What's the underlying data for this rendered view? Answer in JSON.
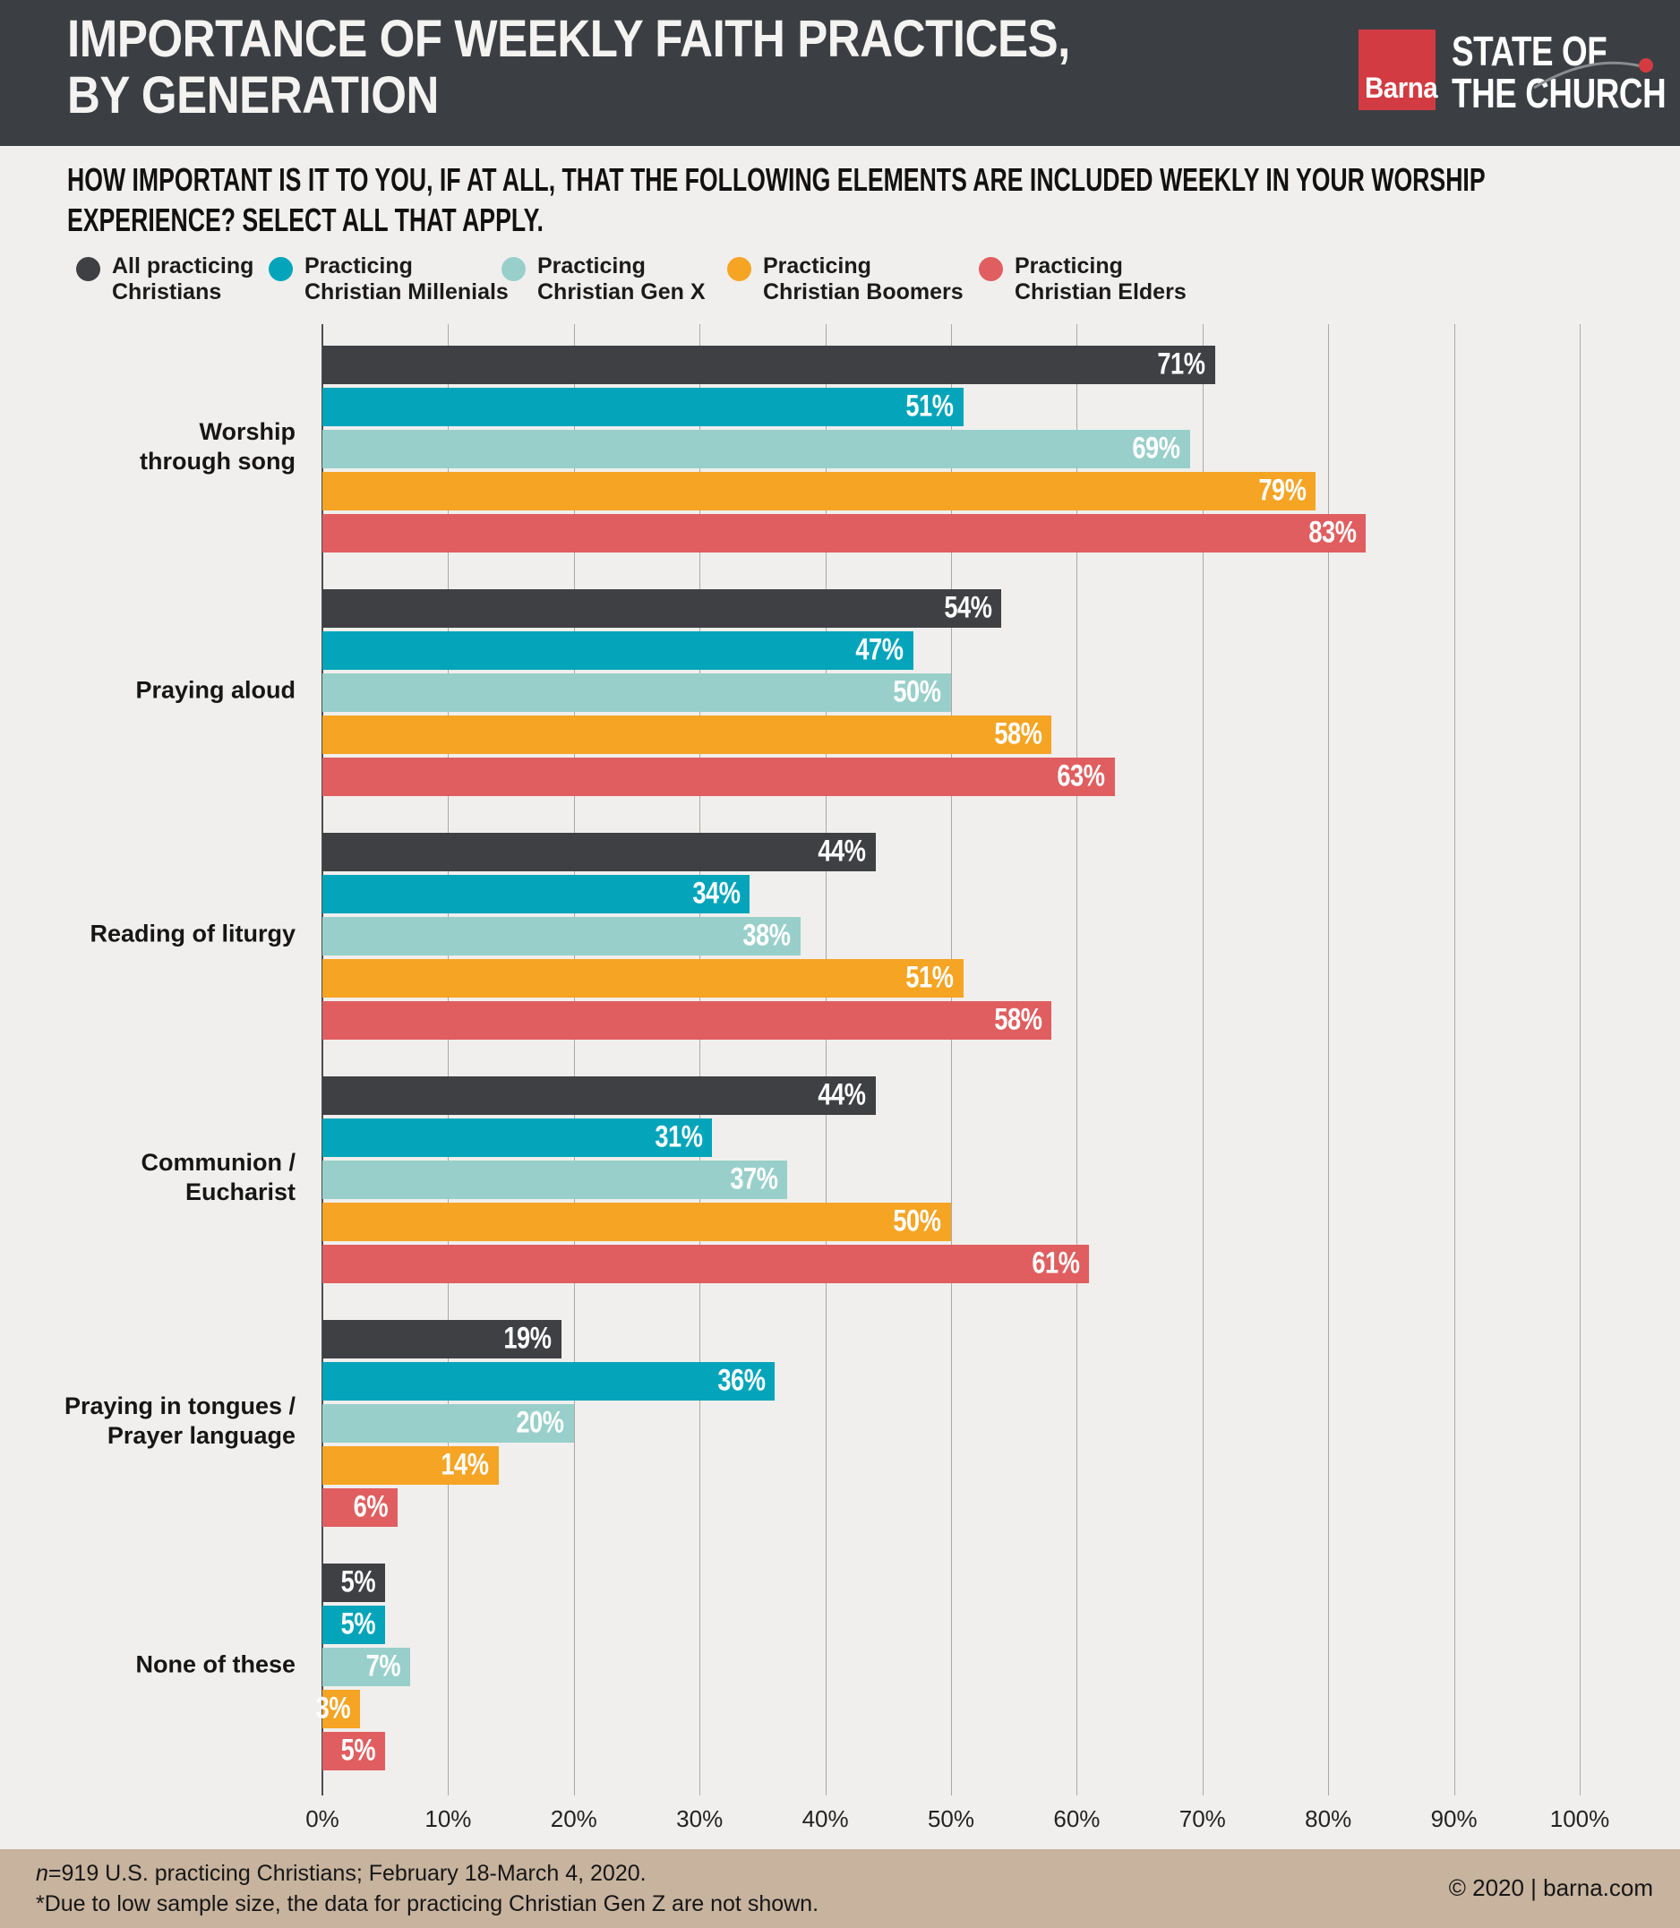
{
  "header": {
    "title_line1": "IMPORTANCE OF WEEKLY FAITH PRACTICES,",
    "title_line2": "BY GENERATION",
    "logo": {
      "barna_label": "Barna",
      "brand_line1": "STATE OF",
      "brand_line2": "THE CHURCH",
      "brand_red": "#D23B41",
      "swoosh_gray": "#8A8D90"
    }
  },
  "question": {
    "line1": "HOW IMPORTANT IS IT TO YOU, IF AT ALL, THAT THE FOLLOWING ELEMENTS ARE INCLUDED WEEKLY IN YOUR WORSHIP",
    "line2": "EXPERIENCE? SELECT ALL THAT APPLY."
  },
  "chart_data": {
    "type": "bar",
    "orientation": "horizontal",
    "title": "Importance of weekly faith practices, by generation",
    "categories": [
      "Worship through song",
      "Praying aloud",
      "Reading of liturgy",
      "Communion / Eucharist",
      "Praying in tongues / Prayer language",
      "None of these"
    ],
    "category_label_lines": [
      [
        "Worship",
        "through song"
      ],
      [
        "Praying aloud"
      ],
      [
        "Reading of liturgy"
      ],
      [
        "Communion /",
        "Eucharist"
      ],
      [
        "Praying in tongues /",
        "Prayer language"
      ],
      [
        "None of these"
      ]
    ],
    "series": [
      {
        "name": "All practicing Christians",
        "legend_lines": [
          "All practicing",
          "Christians"
        ],
        "color": "#3E4043",
        "values": [
          71,
          54,
          44,
          44,
          19,
          5
        ]
      },
      {
        "name": "Practicing Christian Millenials",
        "legend_lines": [
          "Practicing",
          "Christian Millenials"
        ],
        "color": "#04A5BB",
        "values": [
          51,
          47,
          34,
          31,
          36,
          5
        ]
      },
      {
        "name": "Practicing Christian Gen X",
        "legend_lines": [
          "Practicing",
          "Christian Gen X"
        ],
        "color": "#98CFCA",
        "values": [
          69,
          50,
          38,
          37,
          20,
          7
        ]
      },
      {
        "name": "Practicing Christian Boomers",
        "legend_lines": [
          "Practicing",
          "Christian Boomers"
        ],
        "color": "#F5A424",
        "values": [
          79,
          58,
          51,
          50,
          14,
          3
        ]
      },
      {
        "name": "Practicing Christian Elders",
        "legend_lines": [
          "Practicing",
          "Christian Elders"
        ],
        "color": "#E05E5F",
        "values": [
          83,
          63,
          58,
          61,
          6,
          5
        ]
      }
    ],
    "value_suffix": "%",
    "x_ticks": [
      "0%",
      "10%",
      "20%",
      "30%",
      "40%",
      "50%",
      "60%",
      "70%",
      "80%",
      "90%",
      "100%"
    ],
    "xlim": [
      0,
      100
    ],
    "grid": true,
    "legend_position": "top"
  },
  "footer": {
    "n_prefix": "n",
    "note_line1": "=919 U.S. practicing Christians; February 18-March 4, 2020.",
    "note_line2": "*Due to low sample size, the data for practicing Christian Gen Z are not shown.",
    "copyright": "© 2020 | barna.com"
  }
}
